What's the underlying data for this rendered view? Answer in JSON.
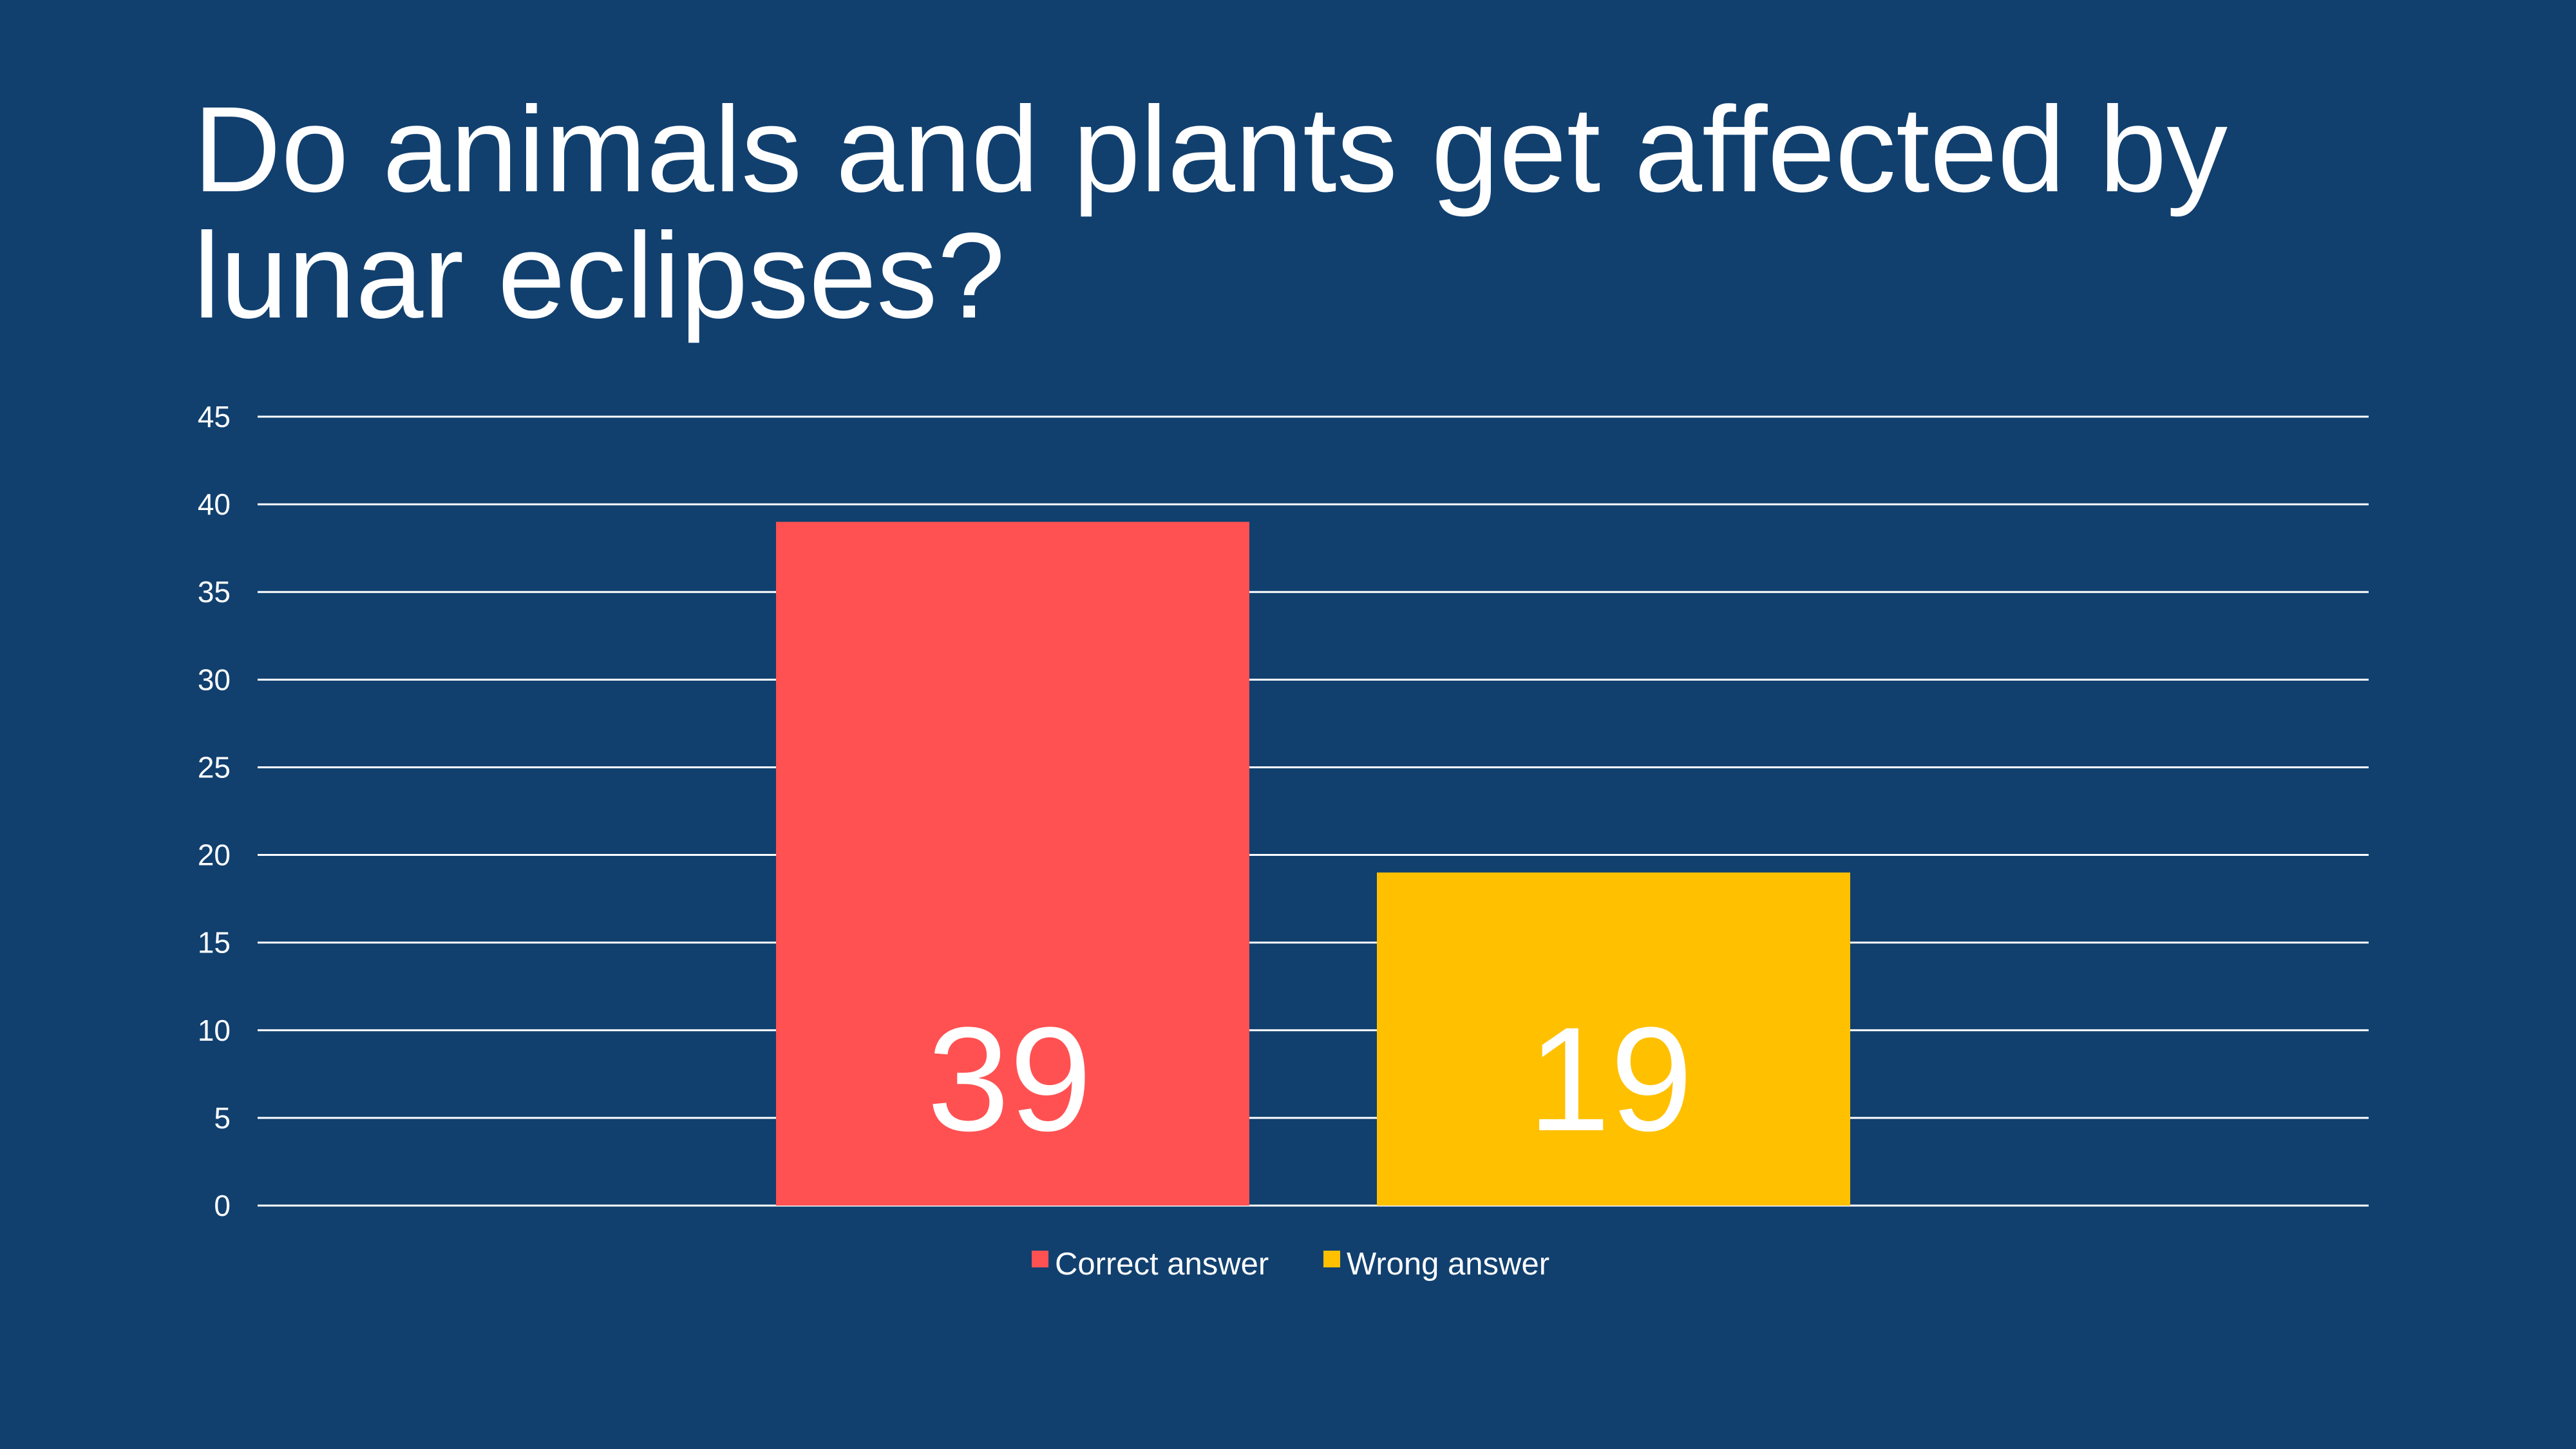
{
  "slide": {
    "title": "Do animals and plants get affected by lunar eclipses?"
  },
  "chart_data": {
    "type": "bar",
    "categories": [
      ""
    ],
    "series": [
      {
        "name": "Correct answer",
        "values": [
          39
        ],
        "color": "#ff5152"
      },
      {
        "name": "Wrong answer",
        "values": [
          19
        ],
        "color": "#ffc000"
      }
    ],
    "title": "Do animals and plants get affected by lunar eclipses?",
    "xlabel": "",
    "ylabel": "",
    "ylim": [
      0,
      45
    ],
    "yticks": [
      0,
      5,
      10,
      15,
      20,
      25,
      30,
      35,
      40,
      45
    ],
    "grid": true,
    "data_labels": true,
    "legend": "bottom",
    "gridline_color": "#ffffff",
    "background": "#11406f"
  }
}
